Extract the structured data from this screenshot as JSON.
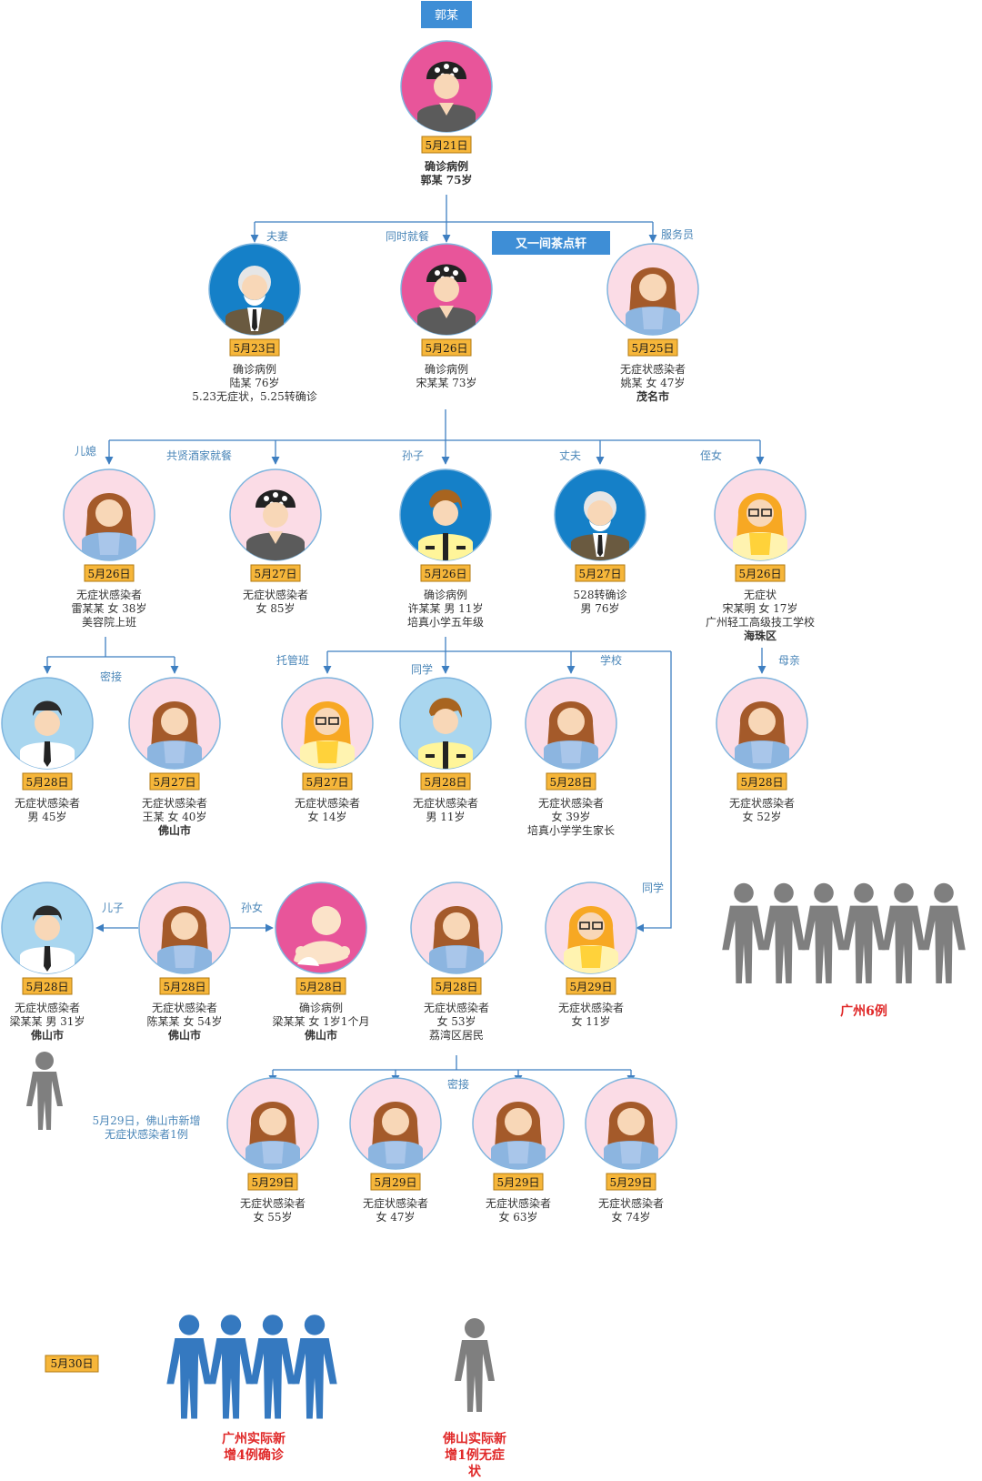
{
  "diagram": {
    "root_label": "郭某",
    "venue_label": "又一间茶点轩",
    "relations": {
      "couple": "夫妻",
      "same_meal": "同时就餐",
      "waiter": "服务员",
      "daughter_in_law": "儿媳",
      "jiuxian_meal": "共贤酒家就餐",
      "grandson": "孙子",
      "husband": "丈夫",
      "niece": "侄女",
      "close_contact_a": "密接",
      "tuoguan": "托管班",
      "classmate": "同学",
      "school": "学校",
      "mother": "母亲",
      "son": "儿子",
      "granddaughter": "孙女",
      "classmate2": "同学",
      "close_contact_b": "密接"
    },
    "nodes": {
      "guo": {
        "date": "5月21日",
        "lines": [
          "确诊病例",
          "郭某 75岁"
        ]
      },
      "lu": {
        "date": "5月23日",
        "lines": [
          "确诊病例",
          "陆某 76岁",
          "5.23无症状，5.25转确诊"
        ]
      },
      "song": {
        "date": "5月26日",
        "lines": [
          "确诊病例",
          "宋某某 73岁"
        ]
      },
      "yao": {
        "date": "5月25日",
        "lines": [
          "无症状感染者",
          "姚某 女 47岁",
          "茂名市"
        ]
      },
      "lei": {
        "date": "5月26日",
        "lines": [
          "无症状感染者",
          "雷某某 女 38岁",
          "美容院上班"
        ]
      },
      "old85": {
        "date": "5月27日",
        "lines": [
          "无症状感染者",
          "女 85岁"
        ]
      },
      "xu": {
        "date": "5月26日",
        "lines": [
          "确诊病例",
          "许某某 男 11岁",
          "培真小学五年级"
        ]
      },
      "hus76": {
        "date": "5月27日",
        "lines": [
          "528转确诊",
          "男 76岁"
        ]
      },
      "songming": {
        "date": "5月26日",
        "lines": [
          "无症状",
          "宋某明 女 17岁",
          "广州轻工高级技工学校",
          "海珠区"
        ]
      },
      "m45": {
        "date": "5月28日",
        "lines": [
          "无症状感染者",
          "男 45岁"
        ]
      },
      "wang": {
        "date": "5月27日",
        "lines": [
          "无症状感染者",
          "王某 女 40岁",
          "佛山市"
        ]
      },
      "f14": {
        "date": "5月27日",
        "lines": [
          "无症状感染者",
          "女 14岁"
        ]
      },
      "m11": {
        "date": "5月28日",
        "lines": [
          "无症状感染者",
          "男 11岁"
        ]
      },
      "f39": {
        "date": "5月28日",
        "lines": [
          "无症状感染者",
          "女 39岁",
          "培真小学学生家长"
        ]
      },
      "f52": {
        "date": "5月28日",
        "lines": [
          "无症状感染者",
          "女 52岁"
        ]
      },
      "liang31": {
        "date": "5月28日",
        "lines": [
          "无症状感染者",
          "梁某某 男 31岁",
          "佛山市"
        ]
      },
      "chen": {
        "date": "5月28日",
        "lines": [
          "无症状感染者",
          "陈某某 女 54岁",
          "佛山市"
        ]
      },
      "baby": {
        "date": "5月28日",
        "lines": [
          "确诊病例",
          "梁某某 女 1岁1个月",
          "佛山市"
        ]
      },
      "f53": {
        "date": "5月28日",
        "lines": [
          "无症状感染者",
          "女 53岁",
          "荔湾区居民"
        ]
      },
      "f11": {
        "date": "5月29日",
        "lines": [
          "无症状感染者",
          "女 11岁"
        ]
      },
      "f55": {
        "date": "5月29日",
        "lines": [
          "无症状感染者",
          "女 55岁"
        ]
      },
      "f47": {
        "date": "5月29日",
        "lines": [
          "无症状感染者",
          "女 47岁"
        ]
      },
      "f63": {
        "date": "5月29日",
        "lines": [
          "无症状感染者",
          "女 63岁"
        ]
      },
      "f74": {
        "date": "5月29日",
        "lines": [
          "无症状感染者",
          "女 74岁"
        ]
      }
    },
    "icon_names": {
      "guo": "grandma-avatar-icon",
      "lu": "grandpa-avatar-icon",
      "song": "grandma-avatar-icon",
      "yao": "woman-avatar-icon",
      "lei": "woman-avatar-icon",
      "old85": "grandma-avatar-icon",
      "xu": "boy-avatar-icon",
      "hus76": "grandpa-avatar-icon",
      "songming": "girl-glasses-avatar-icon",
      "m45": "man-avatar-icon",
      "wang": "woman-avatar-icon",
      "f14": "girl-glasses-avatar-icon",
      "m11": "boy-avatar-icon",
      "f39": "woman-avatar-icon",
      "f52": "woman-avatar-icon",
      "liang31": "man-avatar-icon",
      "chen": "woman-avatar-icon",
      "baby": "baby-avatar-icon",
      "f53": "woman-avatar-icon",
      "f11": "girl-glasses-avatar-icon",
      "f55": "woman-avatar-icon",
      "f47": "woman-avatar-icon",
      "f63": "woman-avatar-icon",
      "f74": "woman-avatar-icon"
    },
    "foshan_note": [
      "5月29日，佛山市新增",
      "无症状感染者1例"
    ],
    "guangzhou_count_label": "广州6例",
    "date_may30": "5月30日",
    "gz_new_label": [
      "广州实际新",
      "增4例确诊"
    ],
    "fs_new_label": [
      "佛山实际新",
      "增1例无症",
      "状"
    ],
    "colors": {
      "connector": "#3e7fc1",
      "date_box": "#f6b63a",
      "highlight_red": "#e02828",
      "group_gray": "#7f7f7f",
      "group_blue": "#3579c0"
    }
  }
}
